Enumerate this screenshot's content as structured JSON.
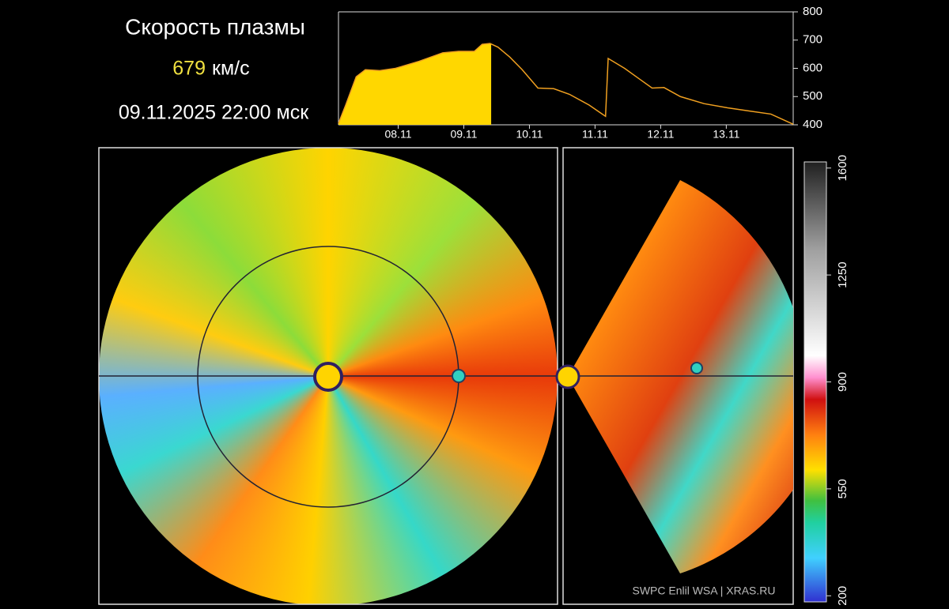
{
  "header": {
    "title": "Скорость плазмы",
    "speed": "679",
    "unit": "км/с",
    "timestamp": "09.11.2025 22:00 мск"
  },
  "chart_data": {
    "type": "area",
    "x": [
      -0.41,
      -0.3,
      -0.14,
      0,
      0.22,
      0.46,
      0.82,
      1.18,
      1.42,
      1.66,
      1.78,
      1.9,
      2.02,
      2.2,
      2.39,
      2.63,
      2.87,
      3.11,
      3.41,
      3.66,
      3.7,
      3.95,
      4.19,
      4.37,
      4.55,
      4.8,
      5.16,
      5.52,
      5.88,
      6.18,
      6.52
    ],
    "values": [
      405,
      470,
      570,
      595,
      592,
      600,
      625,
      655,
      660,
      660,
      685,
      688,
      675,
      640,
      595,
      530,
      528,
      508,
      470,
      430,
      635,
      600,
      560,
      530,
      532,
      500,
      475,
      460,
      448,
      438,
      402
    ],
    "fill_until": 1.917,
    "fill_color": "#ffd700",
    "color": "#f0a020",
    "xlim": [
      -0.41,
      6.52
    ],
    "xticks": [
      {
        "value": 0.5,
        "label": "08.11"
      },
      {
        "value": 1.5,
        "label": "09.11"
      },
      {
        "value": 2.5,
        "label": "10.11"
      },
      {
        "value": 3.5,
        "label": "11.11"
      },
      {
        "value": 4.5,
        "label": "12.11"
      },
      {
        "value": 5.5,
        "label": "13.11"
      }
    ],
    "ylim": [
      400,
      800
    ],
    "yticks": [
      400,
      500,
      600,
      700,
      800
    ]
  },
  "colorbar": {
    "lim": [
      180,
      1620
    ],
    "ticks": [
      200,
      550,
      900,
      1250,
      1600
    ]
  },
  "footer": "SWPC Enlil WSA  |  XRAS.RU"
}
